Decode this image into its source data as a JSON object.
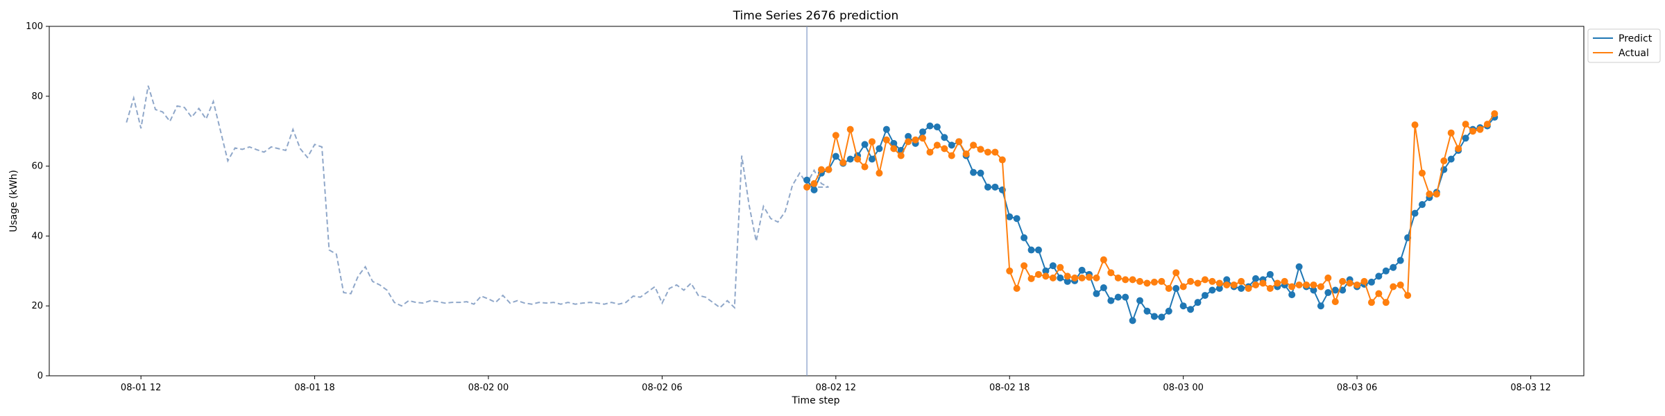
{
  "chart_data": {
    "type": "line",
    "title": "Time Series 2676 prediction",
    "xlabel": "Time step",
    "ylabel": "Usage (kWh)",
    "ylim": [
      0,
      100
    ],
    "yticks": [
      0,
      20,
      40,
      60,
      80,
      100
    ],
    "xlim": [
      "2023-08-01T08:50",
      "2023-08-03T13:50"
    ],
    "xticks": [
      {
        "t": "2023-08-01T12:00",
        "label": "08-01 12"
      },
      {
        "t": "2023-08-01T18:00",
        "label": "08-01 18"
      },
      {
        "t": "2023-08-02T00:00",
        "label": "08-02 00"
      },
      {
        "t": "2023-08-02T06:00",
        "label": "08-02 06"
      },
      {
        "t": "2023-08-02T12:00",
        "label": "08-02 12"
      },
      {
        "t": "2023-08-02T18:00",
        "label": "08-02 18"
      },
      {
        "t": "2023-08-03T00:00",
        "label": "08-03 00"
      },
      {
        "t": "2023-08-03T06:00",
        "label": "08-03 06"
      },
      {
        "t": "2023-08-03T12:00",
        "label": "08-03 12"
      }
    ],
    "grid": false,
    "legend_position": "top-right",
    "forecast_start": "2023-08-02T11:00",
    "interval_minutes": 15,
    "history": {
      "start": "2023-08-01T11:30",
      "color": "#8fa7c9",
      "style": "dashed",
      "values": [
        72.5,
        79.5,
        70.8,
        83.0,
        76.2,
        75.5,
        72.8,
        77.2,
        76.8,
        74.0,
        76.5,
        73.5,
        78.5,
        70.0,
        61.5,
        65.2,
        64.8,
        65.5,
        64.7,
        64.0,
        65.5,
        65.0,
        64.5,
        70.5,
        65.0,
        62.5,
        66.2,
        65.5,
        36.0,
        34.8,
        23.8,
        23.5,
        28.5,
        31.2,
        27.0,
        26.0,
        24.5,
        21.0,
        20.0,
        21.5,
        21.0,
        20.8,
        21.5,
        21.2,
        20.8,
        21.0,
        21.0,
        21.2,
        20.5,
        22.8,
        22.0,
        21.0,
        23.0,
        20.8,
        21.5,
        20.8,
        20.5,
        21.0,
        20.8,
        21.0,
        20.5,
        21.0,
        20.5,
        20.8,
        21.0,
        20.8,
        20.5,
        21.0,
        20.5,
        21.0,
        22.8,
        22.5,
        24.0,
        25.5,
        20.8,
        25.0,
        26.0,
        24.5,
        26.5,
        23.0,
        22.5,
        21.0,
        19.5,
        21.5,
        19.5,
        63.0,
        49.0,
        38.5,
        48.5,
        45.0,
        44.0,
        47.0,
        54.5,
        58.0,
        55.0,
        58.8,
        55.0,
        54.0
      ]
    },
    "series": [
      {
        "name": "Predict",
        "color": "#1f77b4",
        "values": [
          56.0,
          53.2,
          58.0,
          59.0,
          62.8,
          60.8,
          62.0,
          63.0,
          66.2,
          62.0,
          65.0,
          70.5,
          66.5,
          64.5,
          68.5,
          66.5,
          69.8,
          71.5,
          71.2,
          68.2,
          66.0,
          67.0,
          63.0,
          58.2,
          58.0,
          54.0,
          54.0,
          53.2,
          45.5,
          45.0,
          39.5,
          36.0,
          36.0,
          30.0,
          31.5,
          28.0,
          27.0,
          27.2,
          30.2,
          29.0,
          23.5,
          25.2,
          21.5,
          22.5,
          22.5,
          15.8,
          21.5,
          18.5,
          17.0,
          16.8,
          18.5,
          25.0,
          20.0,
          19.0,
          21.0,
          23.0,
          24.5,
          25.0,
          27.5,
          25.5,
          25.0,
          25.5,
          27.8,
          27.5,
          29.0,
          25.5,
          26.0,
          23.2,
          31.2,
          25.5,
          24.5,
          20.0,
          23.8,
          24.5,
          24.5,
          27.5,
          25.5,
          26.2,
          26.8,
          28.5,
          30.0,
          31.0,
          33.0,
          39.5,
          46.5,
          49.0,
          51.0,
          52.5,
          59.0,
          62.0,
          64.5,
          68.0,
          70.5,
          71.0,
          71.5,
          74.0
        ]
      },
      {
        "name": "Actual",
        "color": "#ff7f0e",
        "values": [
          54.0,
          55.0,
          59.0,
          59.0,
          68.8,
          61.0,
          70.5,
          62.0,
          59.8,
          67.0,
          58.0,
          67.5,
          65.0,
          63.0,
          67.0,
          67.5,
          68.0,
          64.0,
          66.0,
          65.0,
          63.0,
          67.0,
          63.5,
          66.0,
          64.8,
          64.0,
          64.0,
          61.8,
          30.0,
          25.0,
          31.5,
          27.8,
          29.0,
          28.5,
          28.0,
          31.0,
          28.5,
          28.0,
          28.0,
          28.2,
          28.0,
          33.2,
          29.5,
          28.0,
          27.5,
          27.5,
          27.0,
          26.5,
          26.8,
          27.0,
          25.0,
          29.5,
          25.5,
          27.0,
          26.5,
          27.5,
          27.0,
          26.5,
          26.0,
          26.0,
          27.0,
          25.0,
          26.0,
          26.5,
          25.0,
          26.5,
          27.0,
          25.5,
          26.0,
          26.0,
          26.0,
          25.5,
          28.0,
          21.2,
          27.0,
          26.5,
          26.0,
          27.0,
          21.0,
          23.5,
          21.0,
          25.5,
          26.0,
          23.0,
          71.8,
          58.0,
          52.0,
          52.0,
          61.5,
          69.5,
          65.0,
          72.0,
          70.0,
          70.5,
          72.0,
          75.0
        ]
      }
    ]
  }
}
